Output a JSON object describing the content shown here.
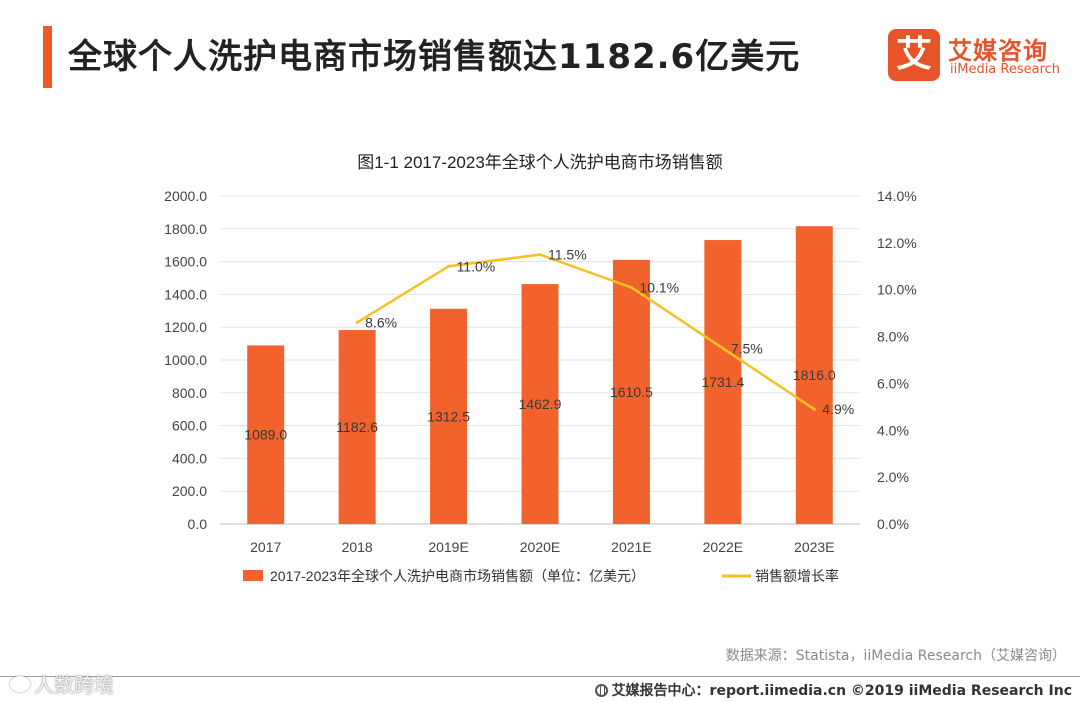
{
  "header": {
    "title": "全球个人洗护电商市场销售额达1182.6亿美元",
    "accent_color": "#f05a24"
  },
  "logo": {
    "mark": "艾",
    "name": "艾媒咨询",
    "subtitle": "iiMedia Research",
    "icon": "iimedia-logo-icon"
  },
  "chart_data": {
    "type": "bar",
    "title": "图1-1 2017-2023年全球个人洗护电商市场销售额",
    "categories": [
      "2017",
      "2018",
      "2019E",
      "2020E",
      "2021E",
      "2022E",
      "2023E"
    ],
    "series": [
      {
        "name": "2017-2023年全球个人洗护电商市场销售额（单位：亿美元）",
        "type": "bar",
        "axis": "left",
        "color": "#f2622d",
        "values": [
          1089.0,
          1182.6,
          1312.5,
          1462.9,
          1610.5,
          1731.4,
          1816.0
        ],
        "labels": [
          "1089.0",
          "1182.6",
          "1312.5",
          "1462.9",
          "1610.5",
          "1731.4",
          "1816.0"
        ]
      },
      {
        "name": "销售额增长率",
        "type": "line",
        "axis": "right",
        "color": "#f5c022",
        "values": [
          null,
          8.6,
          11.0,
          11.5,
          10.1,
          7.5,
          4.9
        ],
        "labels": [
          "",
          "8.6%",
          "11.0%",
          "11.5%",
          "10.1%",
          "7.5%",
          "4.9%"
        ]
      }
    ],
    "y_left": {
      "range": [
        0,
        2000
      ],
      "ticks": [
        "0.0",
        "200.0",
        "400.0",
        "600.0",
        "800.0",
        "1000.0",
        "1200.0",
        "1400.0",
        "1600.0",
        "1800.0",
        "2000.0"
      ]
    },
    "y_right": {
      "range": [
        0,
        14
      ],
      "ticks": [
        "0.0%",
        "2.0%",
        "4.0%",
        "6.0%",
        "8.0%",
        "10.0%",
        "12.0%",
        "14.0%"
      ]
    },
    "grid": true,
    "legend_position": "bottom"
  },
  "source": "数据来源：Statista，iiMedia Research（艾媒咨询）",
  "footer": {
    "icon": "report-center-icon",
    "text": "艾媒报告中心：report.iimedia.cn ©2019 iiMedia Research Inc"
  },
  "watermark": {
    "icon": "weibo-icon",
    "text": "人数跨境"
  }
}
